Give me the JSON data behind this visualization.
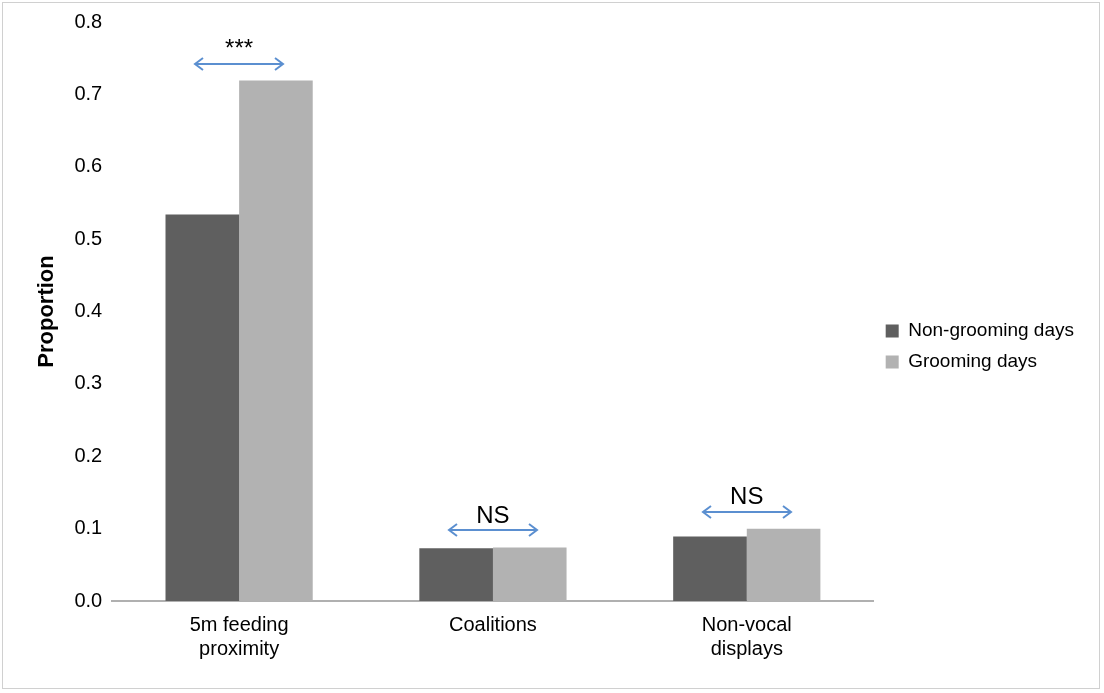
{
  "chart_data": {
    "type": "bar",
    "ylabel": "Proportion",
    "categories": [
      "5m feeding proximity",
      "Coalitions",
      "Non-vocal displays"
    ],
    "series": [
      {
        "name": "Non-grooming days",
        "color": "#5f5f5f",
        "values": [
          0.534,
          0.073,
          0.089
        ]
      },
      {
        "name": "Grooming days",
        "color": "#b2b2b2",
        "values": [
          0.719,
          0.074,
          0.1
        ]
      }
    ],
    "ylim": [
      0,
      0.8
    ],
    "yticks": [
      {
        "value": 0,
        "label": "0.0"
      },
      0.1,
      0.2,
      0.3,
      0.4,
      0.5,
      0.6,
      0.7,
      0.8
    ],
    "grid": false,
    "legend": "right",
    "annotations": [
      "***",
      "NS",
      "NS"
    ]
  }
}
